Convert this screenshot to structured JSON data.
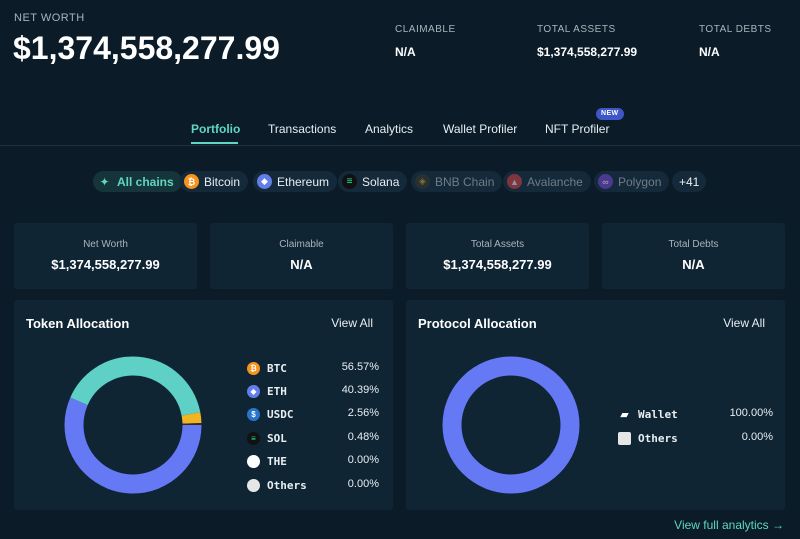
{
  "header": {
    "net_worth_label": "NET WORTH",
    "net_worth_value": "$1,374,558,277.99",
    "claimable_label": "CLAIMABLE",
    "claimable_value": "N/A",
    "total_assets_label": "TOTAL ASSETS",
    "total_assets_value": "$1,374,558,277.99",
    "total_debts_label": "TOTAL DEBTS",
    "total_debts_value": "N/A"
  },
  "tabs": [
    {
      "label": "Portfolio",
      "active": true
    },
    {
      "label": "Transactions"
    },
    {
      "label": "Analytics"
    },
    {
      "label": "Wallet Profiler"
    },
    {
      "label": "NFT Profiler",
      "badge": "NEW"
    }
  ],
  "chains": [
    {
      "label": "All chains",
      "icon": "all-chains-icon",
      "color": "#5fd6c2",
      "active": true
    },
    {
      "label": "Bitcoin",
      "icon": "bitcoin-icon",
      "color": "#f7931a"
    },
    {
      "label": "Ethereum",
      "icon": "ethereum-icon",
      "color": "#627eea"
    },
    {
      "label": "Solana",
      "icon": "solana-icon",
      "color": "#14f195"
    },
    {
      "label": "BNB Chain",
      "icon": "bnb-chain-icon",
      "color": "#f3ba2f",
      "disabled": true
    },
    {
      "label": "Avalanche",
      "icon": "avalanche-icon",
      "color": "#e84142",
      "disabled": true
    },
    {
      "label": "Polygon",
      "icon": "polygon-icon",
      "color": "#8247e5",
      "disabled": true
    },
    {
      "label": "+41"
    }
  ],
  "stats": [
    {
      "label": "Net Worth",
      "value": "$1,374,558,277.99"
    },
    {
      "label": "Claimable",
      "value": "N/A"
    },
    {
      "label": "Total Assets",
      "value": "$1,374,558,277.99"
    },
    {
      "label": "Total Debts",
      "value": "N/A"
    }
  ],
  "token_allocation": {
    "title": "Token Allocation",
    "view_all": "View All",
    "items": [
      {
        "name": "BTC",
        "pct": "56.57%",
        "color": "#f7931a",
        "icon": "bitcoin-icon"
      },
      {
        "name": "ETH",
        "pct": "40.39%",
        "color": "#627eea",
        "icon": "ethereum-icon"
      },
      {
        "name": "USDC",
        "pct": "2.56%",
        "color": "#2775ca",
        "icon": "usdc-icon"
      },
      {
        "name": "SOL",
        "pct": "0.48%",
        "color": "#111111",
        "icon": "solana-icon"
      },
      {
        "name": "THE",
        "pct": "0.00%",
        "color": "#ffffff",
        "icon": "the-token-icon"
      },
      {
        "name": "Others",
        "pct": "0.00%",
        "color": "#e6e6e6",
        "icon": "others-icon"
      }
    ]
  },
  "protocol_allocation": {
    "title": "Protocol Allocation",
    "view_all": "View All",
    "items": [
      {
        "name": "Wallet",
        "pct": "100.00%",
        "icon": "wallet-icon"
      },
      {
        "name": "Others",
        "pct": "0.00%",
        "icon": "others-icon"
      }
    ]
  },
  "footer": {
    "link": "View full analytics →"
  },
  "chart_data": [
    {
      "type": "pie",
      "title": "Token Allocation",
      "categories": [
        "BTC",
        "ETH",
        "USDC",
        "SOL",
        "THE",
        "Others"
      ],
      "values": [
        56.57,
        40.39,
        2.56,
        0.48,
        0.0,
        0.0
      ],
      "colors": [
        "#6679f5",
        "#5ed0c6",
        "#f1b524",
        "#2a2a2a",
        "#ffffff",
        "#dddddd"
      ]
    },
    {
      "type": "pie",
      "title": "Protocol Allocation",
      "categories": [
        "Wallet",
        "Others"
      ],
      "values": [
        100.0,
        0.0
      ],
      "colors": [
        "#6679f5",
        "#dddddd"
      ]
    }
  ]
}
